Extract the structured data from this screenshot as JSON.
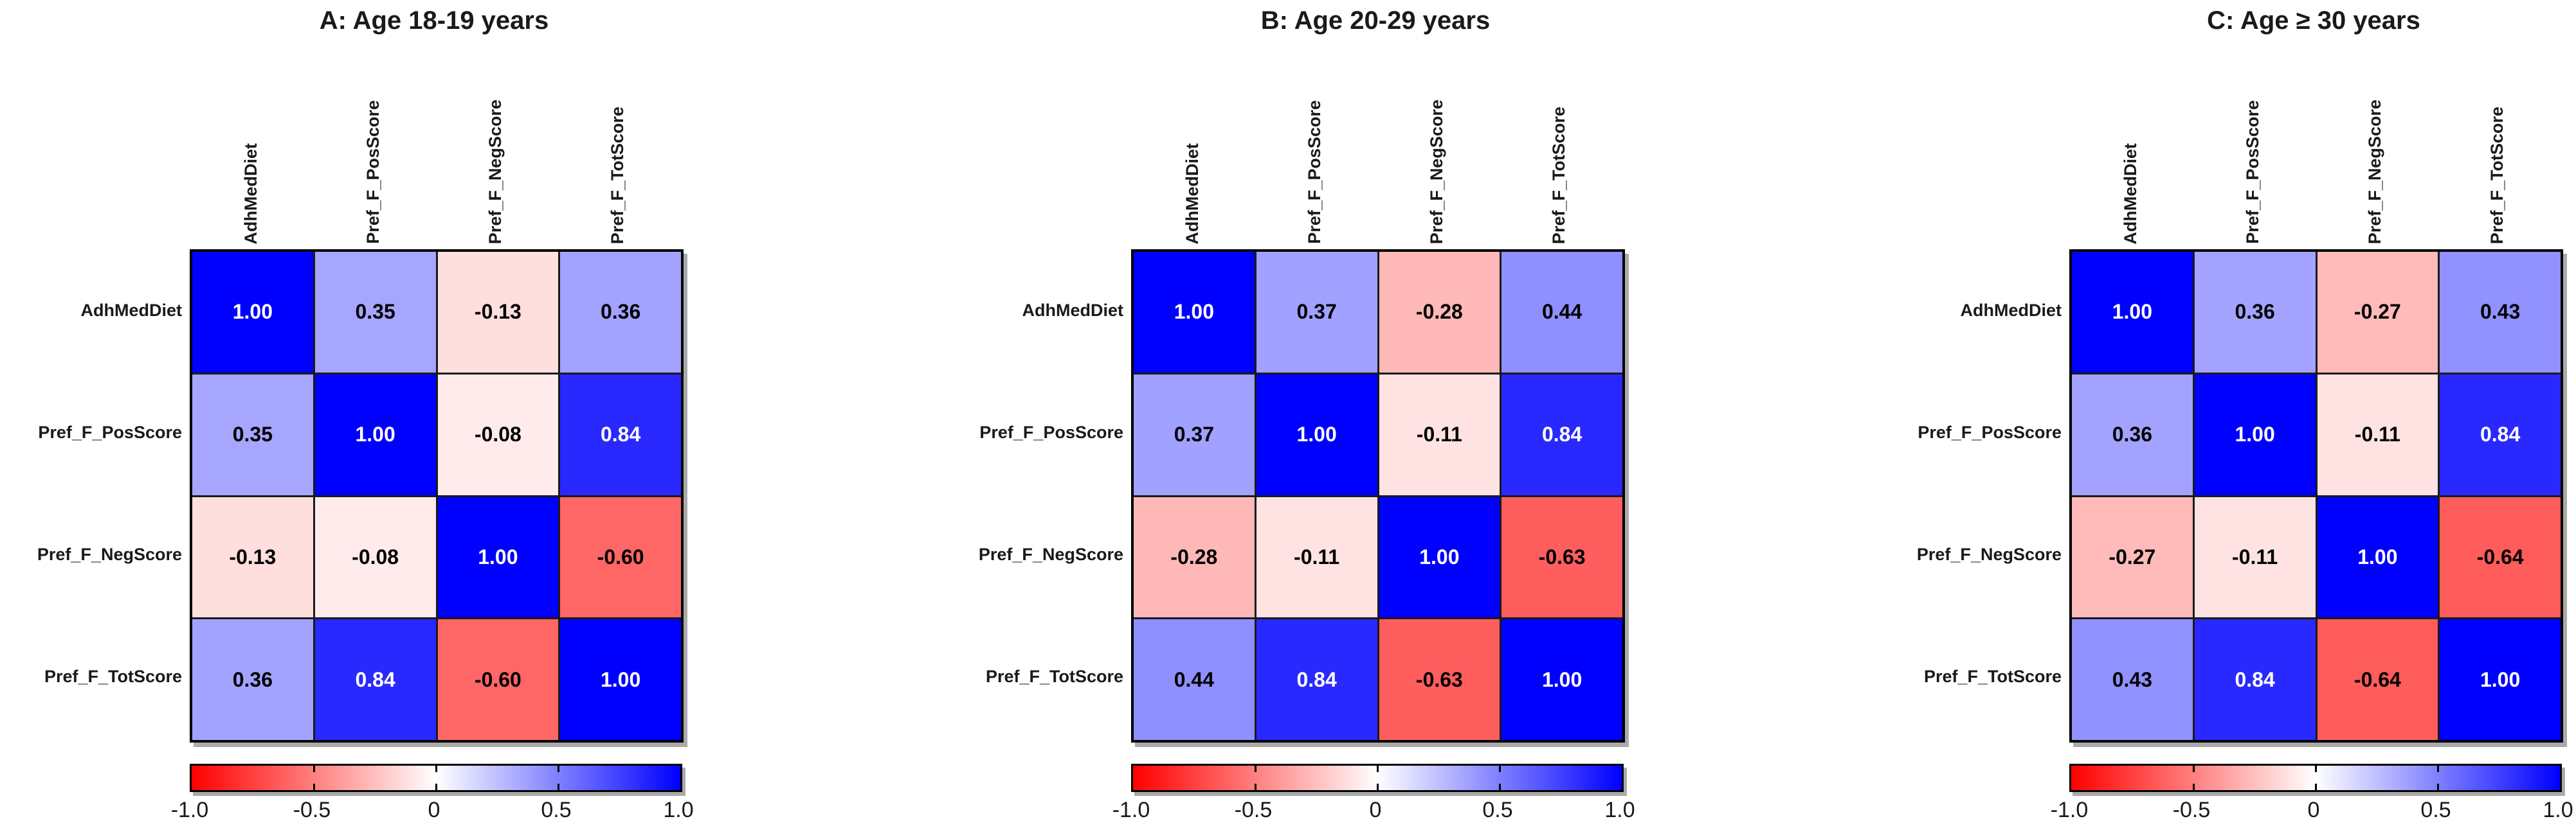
{
  "figure": {
    "background": "#ffffff",
    "variables": [
      "AdhMedDiet",
      "Pref_F_PosScore",
      "Pref_F_NegScore",
      "Pref_F_TotScore"
    ],
    "colors": {
      "negative_end": "#ff0000",
      "midpoint": "#ffffff",
      "positive_end": "#0000ff",
      "grid_line": "#1a1a1a",
      "outer_border": "#000000",
      "cell_text_dark": "#000000",
      "cell_text_light": "#ffffff"
    },
    "colorbar": {
      "min": -1,
      "max": 1,
      "tick_labels": [
        "-1.0",
        "-0.5",
        "0",
        "0.5",
        "1.0"
      ],
      "tick_positions_pct": [
        0,
        25,
        50,
        75,
        100
      ]
    }
  },
  "chart_data": [
    {
      "type": "heatmap",
      "panel": "A",
      "title": "A: Age 18-19 years",
      "x_labels": [
        "AdhMedDiet",
        "Pref_F_PosScore",
        "Pref_F_NegScore",
        "Pref_F_TotScore"
      ],
      "y_labels": [
        "AdhMedDiet",
        "Pref_F_PosScore",
        "Pref_F_NegScore",
        "Pref_F_TotScore"
      ],
      "values": [
        [
          1.0,
          0.35,
          -0.13,
          0.36
        ],
        [
          0.35,
          1.0,
          -0.08,
          0.84
        ],
        [
          -0.13,
          -0.08,
          1.0,
          -0.6
        ],
        [
          0.36,
          0.84,
          -0.6,
          1.0
        ]
      ],
      "value_decimals": 2,
      "colorscale": {
        "min": -1,
        "max": 1,
        "min_color": "#ff0000",
        "mid_color": "#ffffff",
        "max_color": "#0000ff"
      },
      "colorbar_tick_labels": [
        "-1.0",
        "-0.5",
        "0",
        "0.5",
        "1.0"
      ],
      "legend_position": "bottom"
    },
    {
      "type": "heatmap",
      "panel": "B",
      "title": "B: Age 20-29 years",
      "x_labels": [
        "AdhMedDiet",
        "Pref_F_PosScore",
        "Pref_F_NegScore",
        "Pref_F_TotScore"
      ],
      "y_labels": [
        "AdhMedDiet",
        "Pref_F_PosScore",
        "Pref_F_NegScore",
        "Pref_F_TotScore"
      ],
      "values": [
        [
          1.0,
          0.37,
          -0.28,
          0.44
        ],
        [
          0.37,
          1.0,
          -0.11,
          0.84
        ],
        [
          -0.28,
          -0.11,
          1.0,
          -0.63
        ],
        [
          0.44,
          0.84,
          -0.63,
          1.0
        ]
      ],
      "value_decimals": 2,
      "colorscale": {
        "min": -1,
        "max": 1,
        "min_color": "#ff0000",
        "mid_color": "#ffffff",
        "max_color": "#0000ff"
      },
      "colorbar_tick_labels": [
        "-1.0",
        "-0.5",
        "0",
        "0.5",
        "1.0"
      ],
      "legend_position": "bottom"
    },
    {
      "type": "heatmap",
      "panel": "C",
      "title": "C: Age ≥ 30 years",
      "x_labels": [
        "AdhMedDiet",
        "Pref_F_PosScore",
        "Pref_F_NegScore",
        "Pref_F_TotScore"
      ],
      "y_labels": [
        "AdhMedDiet",
        "Pref_F_PosScore",
        "Pref_F_NegScore",
        "Pref_F_TotScore"
      ],
      "values": [
        [
          1.0,
          0.36,
          -0.27,
          0.43
        ],
        [
          0.36,
          1.0,
          -0.11,
          0.84
        ],
        [
          -0.27,
          -0.11,
          1.0,
          -0.64
        ],
        [
          0.43,
          0.84,
          -0.64,
          1.0
        ]
      ],
      "value_decimals": 2,
      "colorscale": {
        "min": -1,
        "max": 1,
        "min_color": "#ff0000",
        "mid_color": "#ffffff",
        "max_color": "#0000ff"
      },
      "colorbar_tick_labels": [
        "-1.0",
        "-0.5",
        "0",
        "0.5",
        "1.0"
      ],
      "legend_position": "bottom"
    }
  ]
}
